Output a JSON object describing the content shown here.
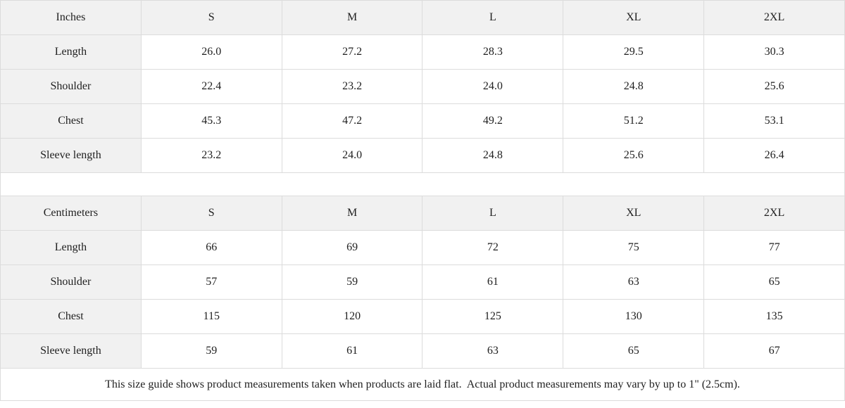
{
  "colors": {
    "header_bg": "#f1f1f1",
    "cell_bg": "#ffffff",
    "border": "#dcdcdc",
    "text": "#1f1f1f"
  },
  "tables": [
    {
      "unit_label": "Inches",
      "sizes": [
        "S",
        "M",
        "L",
        "XL",
        "2XL"
      ],
      "rows": [
        {
          "label": "Length",
          "values": [
            "26.0",
            "27.2",
            "28.3",
            "29.5",
            "30.3"
          ]
        },
        {
          "label": "Shoulder",
          "values": [
            "22.4",
            "23.2",
            "24.0",
            "24.8",
            "25.6"
          ]
        },
        {
          "label": "Chest",
          "values": [
            "45.3",
            "47.2",
            "49.2",
            "51.2",
            "53.1"
          ]
        },
        {
          "label": "Sleeve length",
          "values": [
            "23.2",
            "24.0",
            "24.8",
            "25.6",
            "26.4"
          ]
        }
      ]
    },
    {
      "unit_label": "Centimeters",
      "sizes": [
        "S",
        "M",
        "L",
        "XL",
        "2XL"
      ],
      "rows": [
        {
          "label": "Length",
          "values": [
            "66",
            "69",
            "72",
            "75",
            "77"
          ]
        },
        {
          "label": "Shoulder",
          "values": [
            "57",
            "59",
            "61",
            "63",
            "65"
          ]
        },
        {
          "label": "Chest",
          "values": [
            "115",
            "120",
            "125",
            "130",
            "135"
          ]
        },
        {
          "label": "Sleeve length",
          "values": [
            "59",
            "61",
            "63",
            "65",
            "67"
          ]
        }
      ]
    }
  ],
  "footer": {
    "note": "This size guide shows product measurements taken when products are laid flat.  Actual product measurements may vary by up to 1\" (2.5cm)."
  }
}
